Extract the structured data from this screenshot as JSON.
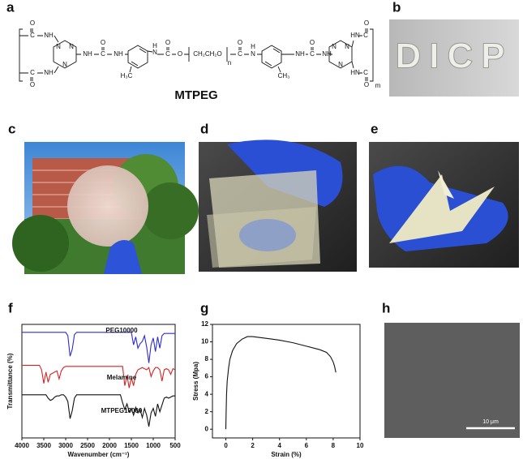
{
  "panel_labels": [
    "a",
    "b",
    "c",
    "d",
    "e",
    "f",
    "g",
    "h"
  ],
  "structure": {
    "name": "MTPEG",
    "atoms": [
      "O",
      "C",
      "NH",
      "C",
      "O",
      "NH",
      "N",
      "N",
      "N",
      "NH",
      "C",
      "O",
      "NH",
      "H",
      "N",
      "H₃C",
      "C",
      "O",
      "O",
      "CH₂CH₂O",
      "n",
      "C",
      "O",
      "N",
      "H",
      "CH₃",
      "NH",
      "C",
      "O",
      "NH",
      "N",
      "N",
      "N",
      "HN",
      "C",
      "O",
      "HN",
      "C",
      "O",
      "m"
    ]
  },
  "photo_b_text": "DICP",
  "scale_bar": "10 μm",
  "chart_data": [
    {
      "type": "line",
      "x_label": "Wavenumber (cm⁻¹)",
      "y_label": "Transmittance (%)",
      "x": [
        4000,
        3950,
        3900,
        3850,
        3800,
        3750,
        3700,
        3650,
        3600,
        3550,
        3500,
        3450,
        3400,
        3350,
        3300,
        3250,
        3200,
        3150,
        3100,
        3050,
        3000,
        2950,
        2900,
        2850,
        2800,
        2750,
        2700,
        2650,
        2600,
        2550,
        2500,
        2450,
        2400,
        2350,
        2300,
        2250,
        2200,
        2150,
        2100,
        2050,
        2000,
        1950,
        1900,
        1850,
        1800,
        1750,
        1700,
        1650,
        1600,
        1550,
        1500,
        1450,
        1400,
        1350,
        1300,
        1250,
        1200,
        1150,
        1100,
        1050,
        1000,
        950,
        900,
        850,
        800,
        750,
        700,
        650,
        600,
        550,
        500
      ],
      "xlim": [
        4000,
        500
      ],
      "xticks": [
        4000,
        3500,
        3000,
        2500,
        2000,
        1500,
        1000,
        500
      ],
      "ylim": [
        0,
        10
      ],
      "series": [
        {
          "name": "PEG10000",
          "color": "#2b2bd6",
          "values": [
            9.3,
            9.3,
            9.3,
            9.3,
            9.3,
            9.3,
            9.3,
            9.3,
            9.3,
            9.3,
            9.3,
            9.3,
            9.3,
            9.3,
            9.3,
            9.3,
            9.3,
            9.3,
            9.3,
            9.3,
            9.3,
            9.0,
            7.2,
            7.8,
            9.1,
            9.3,
            9.3,
            9.3,
            9.3,
            9.3,
            9.3,
            9.3,
            9.3,
            9.3,
            9.3,
            9.3,
            9.3,
            9.3,
            9.3,
            9.3,
            9.3,
            9.3,
            9.3,
            9.3,
            9.3,
            9.3,
            9.3,
            9.3,
            9.3,
            9.3,
            9.3,
            8.2,
            8.9,
            7.9,
            8.3,
            8.5,
            9.0,
            8.0,
            6.6,
            8.2,
            8.8,
            7.6,
            8.9,
            7.9,
            9.0,
            9.2,
            9.2,
            9.2,
            9.2,
            9.2,
            9.2
          ]
        },
        {
          "name": "Melamine",
          "color": "#d62424",
          "values": [
            6.4,
            6.4,
            6.4,
            6.4,
            6.4,
            6.4,
            6.4,
            6.4,
            6.4,
            6.0,
            4.8,
            5.8,
            4.9,
            5.6,
            5.7,
            5.8,
            5.9,
            5.2,
            5.9,
            6.2,
            6.3,
            6.3,
            6.3,
            6.3,
            6.3,
            6.3,
            6.3,
            6.3,
            6.3,
            6.3,
            6.3,
            6.3,
            6.3,
            6.3,
            6.3,
            6.3,
            6.3,
            6.3,
            6.3,
            6.3,
            6.3,
            6.3,
            6.3,
            6.3,
            6.3,
            6.3,
            6.3,
            4.6,
            5.5,
            4.4,
            5.3,
            4.6,
            5.6,
            6.0,
            6.1,
            6.2,
            6.1,
            6.0,
            6.2,
            5.4,
            5.9,
            6.2,
            6.2,
            6.0,
            5.0,
            6.0,
            6.1,
            6.0,
            5.6,
            6.1,
            6.0
          ]
        },
        {
          "name": "MTPEG10000",
          "color": "#111111",
          "values": [
            3.8,
            3.8,
            3.8,
            3.8,
            3.8,
            3.8,
            3.8,
            3.8,
            3.8,
            3.8,
            3.8,
            3.8,
            3.5,
            3.3,
            3.4,
            3.6,
            3.7,
            3.7,
            3.8,
            3.8,
            3.6,
            3.2,
            1.7,
            2.4,
            3.5,
            3.8,
            3.8,
            3.8,
            3.8,
            3.8,
            3.8,
            3.8,
            3.8,
            3.8,
            3.8,
            3.8,
            3.8,
            3.8,
            3.8,
            3.8,
            3.8,
            3.8,
            3.8,
            3.8,
            3.8,
            3.8,
            3.1,
            2.5,
            3.0,
            2.3,
            2.6,
            2.0,
            2.7,
            2.2,
            2.5,
            1.8,
            2.6,
            2.0,
            1.0,
            2.2,
            2.6,
            1.9,
            3.0,
            2.3,
            2.9,
            3.5,
            3.6,
            3.5,
            3.6,
            3.7,
            3.7
          ]
        }
      ]
    },
    {
      "type": "line",
      "x_label": "Strain (%)",
      "y_label": "Stress (Mpa)",
      "x": [
        0,
        0.02,
        0.05,
        0.1,
        0.2,
        0.3,
        0.5,
        0.8,
        1.2,
        1.6,
        2,
        3,
        4,
        5,
        6,
        7,
        7.5,
        7.8,
        8,
        8.1,
        8.2
      ],
      "xlim": [
        -1,
        10
      ],
      "xticks": [
        0,
        2,
        4,
        6,
        8,
        10
      ],
      "ylim": [
        -1,
        12
      ],
      "yticks": [
        0,
        2,
        4,
        6,
        8,
        10,
        12
      ],
      "series": [
        {
          "color": "#111111",
          "values": [
            0,
            2,
            4,
            5.5,
            7,
            8,
            9,
            9.8,
            10.3,
            10.6,
            10.6,
            10.4,
            10.2,
            9.9,
            9.5,
            9.1,
            8.8,
            8.3,
            7.7,
            7.2,
            6.5
          ]
        }
      ]
    }
  ]
}
